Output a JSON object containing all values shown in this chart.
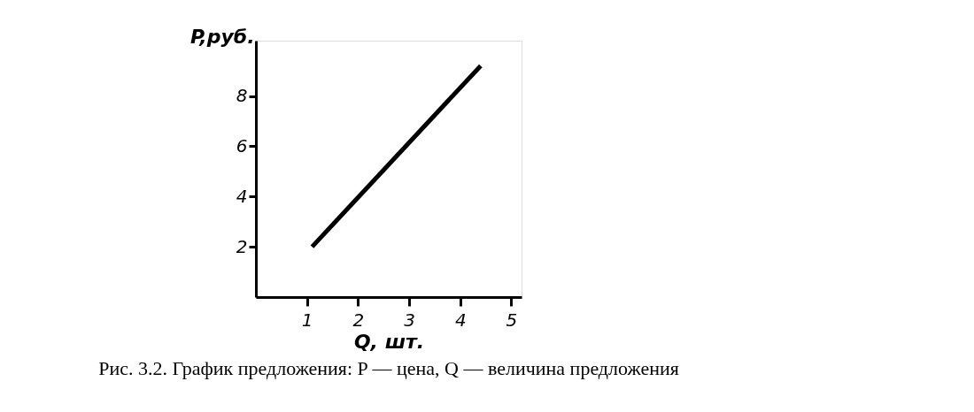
{
  "chart_data": {
    "type": "line",
    "xlabel": "Q, шт.",
    "ylabel": "P,руб.",
    "x": [
      1.1,
      4.4
    ],
    "series": [
      {
        "color": "#000000",
        "values": [
          2.0,
          9.2
        ]
      }
    ],
    "xlim": [
      0,
      5.2
    ],
    "ylim": [
      0,
      10.2
    ],
    "xticks": [
      1,
      2,
      3,
      4,
      5
    ],
    "yticks": [
      2,
      4,
      6,
      8
    ],
    "grid": false,
    "legend": false,
    "marker": "none",
    "line_style": "solid",
    "annotations": [
      "Рис. 3.2. График предложения: P — цена, Q — величина предложения"
    ]
  }
}
